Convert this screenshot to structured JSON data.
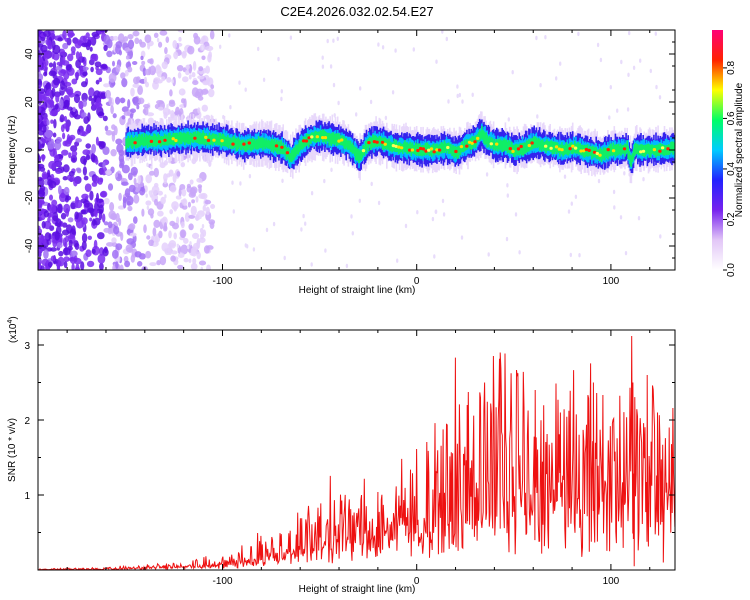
{
  "title": "C2E4.2026.032.02.54.E27",
  "colors": {
    "axis": "#000000",
    "snr_line": "#ee1111",
    "colormap": [
      "#ffffff",
      "#e2c6f7",
      "#7722ee",
      "#2222ff",
      "#00ccff",
      "#00ff66",
      "#ffff00",
      "#ff2200",
      "#ff0077"
    ]
  },
  "chart_data": [
    {
      "type": "heatmap",
      "name": "spectrogram",
      "xlabel": "Height of straight line (km)",
      "ylabel": "Frequency (Hz)",
      "xlim": [
        -195,
        133
      ],
      "ylim": [
        -50,
        50
      ],
      "xticks": [
        -100,
        0,
        100
      ],
      "xtick_labels": [
        "-100",
        "0",
        "100"
      ],
      "yticks": [
        -40,
        -20,
        0,
        20,
        40
      ],
      "ytick_labels": [
        "-40",
        "-20",
        "0",
        "20",
        "40"
      ],
      "signal_start_km": -150,
      "ridge": {
        "x": [
          -150,
          -140,
          -130,
          -120,
          -110,
          -100,
          -90,
          -80,
          -70,
          -65,
          -60,
          -55,
          -50,
          -45,
          -40,
          -35,
          -30,
          -25,
          -20,
          -15,
          -10,
          -5,
          0,
          5,
          10,
          15,
          20,
          25,
          30,
          33,
          36,
          40,
          45,
          50,
          55,
          60,
          65,
          70,
          75,
          80,
          85,
          90,
          95,
          100,
          105,
          108,
          110,
          112,
          115,
          120,
          125,
          133
        ],
        "y": [
          3,
          4,
          4,
          5,
          5,
          4,
          2,
          3,
          1,
          -3,
          2,
          5,
          6,
          5,
          4,
          2,
          -3,
          3,
          4,
          2,
          1,
          1,
          0,
          0,
          0,
          1,
          -1,
          2,
          4,
          7,
          4,
          2,
          2,
          0,
          1,
          3,
          2,
          1,
          0,
          1,
          0,
          -1,
          -2,
          0,
          0,
          1,
          -5,
          1,
          0,
          0,
          0,
          1
        ]
      },
      "colorbar": {
        "label": "Normalized spectral amplitude",
        "range": [
          0,
          0.95
        ],
        "ticks": [
          0.0,
          0.2,
          0.4,
          0.6,
          0.8
        ],
        "tick_labels": [
          "0.0",
          "0.2",
          "0.4",
          "0.6",
          "0.8"
        ]
      }
    },
    {
      "type": "line",
      "name": "snr",
      "xlabel": "Height of straight line (km)",
      "ylabel": "SNR (10 * v/v)",
      "multiplier_label": "(x10",
      "multiplier_exp": "4",
      "xlim": [
        -195,
        133
      ],
      "ylim": [
        0,
        3.2
      ],
      "xticks": [
        -100,
        0,
        100
      ],
      "xtick_labels": [
        "-100",
        "0",
        "100"
      ],
      "yticks": [
        1,
        2,
        3
      ],
      "ytick_labels": [
        "1",
        "2",
        "3"
      ],
      "envelope": {
        "x": [
          -195,
          -160,
          -140,
          -120,
          -100,
          -90,
          -80,
          -70,
          -60,
          -50,
          -40,
          -30,
          -20,
          -10,
          0,
          10,
          20,
          30,
          40,
          50,
          60,
          70,
          80,
          90,
          100,
          110,
          120,
          133
        ],
        "y": [
          0.01,
          0.02,
          0.04,
          0.07,
          0.12,
          0.18,
          0.26,
          0.32,
          0.45,
          0.55,
          0.65,
          0.7,
          0.75,
          0.8,
          0.95,
          1.05,
          1.3,
          1.5,
          1.6,
          1.55,
          1.45,
          1.4,
          1.35,
          1.3,
          1.3,
          1.35,
          1.4,
          1.5
        ]
      },
      "peaks": [
        {
          "x": -20,
          "y": 0.92
        },
        {
          "x": 26,
          "y": 2.2
        },
        {
          "x": 43,
          "y": 2.9
        },
        {
          "x": 43.6,
          "y": 2.3
        },
        {
          "x": 61,
          "y": 2.4
        },
        {
          "x": 74,
          "y": 2.1
        },
        {
          "x": 91,
          "y": 2.5
        },
        {
          "x": 110.7,
          "y": 3.12
        },
        {
          "x": 111.3,
          "y": 2.5
        },
        {
          "x": 112,
          "y": 0.05
        },
        {
          "x": 118.7,
          "y": 2.6
        },
        {
          "x": 124,
          "y": 2.1
        },
        {
          "x": 127,
          "y": 0.1
        },
        {
          "x": 130,
          "y": 1.9
        }
      ]
    }
  ]
}
